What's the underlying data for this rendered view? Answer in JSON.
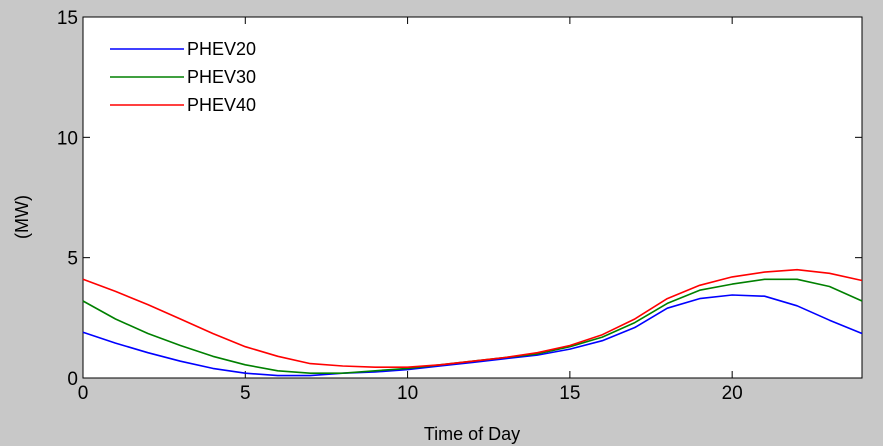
{
  "chart_data": {
    "type": "line",
    "title": "",
    "xlabel": "Time of Day",
    "ylabel": "(MW)",
    "xlim": [
      0,
      24
    ],
    "ylim": [
      0,
      15
    ],
    "xticks": [
      0,
      5,
      10,
      15,
      20
    ],
    "yticks": [
      0,
      5,
      10,
      15
    ],
    "grid": false,
    "legend_position": "top-left",
    "x": [
      0,
      1,
      2,
      3,
      4,
      5,
      6,
      7,
      8,
      9,
      10,
      11,
      12,
      13,
      14,
      15,
      16,
      17,
      18,
      19,
      20,
      21,
      22,
      23,
      24
    ],
    "series": [
      {
        "name": "PHEV20",
        "color": "#0000ff",
        "values": [
          1.9,
          1.45,
          1.05,
          0.7,
          0.4,
          0.2,
          0.1,
          0.1,
          0.2,
          0.25,
          0.35,
          0.5,
          0.65,
          0.8,
          0.95,
          1.2,
          1.55,
          2.1,
          2.9,
          3.3,
          3.45,
          3.4,
          3.0,
          2.4,
          1.85
        ]
      },
      {
        "name": "PHEV30",
        "color": "#008000",
        "values": [
          3.2,
          2.45,
          1.85,
          1.35,
          0.9,
          0.55,
          0.3,
          0.2,
          0.2,
          0.3,
          0.4,
          0.55,
          0.7,
          0.85,
          1.0,
          1.3,
          1.7,
          2.3,
          3.1,
          3.65,
          3.9,
          4.1,
          4.1,
          3.8,
          3.2
        ]
      },
      {
        "name": "PHEV40",
        "color": "#ff0000",
        "values": [
          4.1,
          3.6,
          3.05,
          2.45,
          1.85,
          1.3,
          0.9,
          0.6,
          0.5,
          0.45,
          0.45,
          0.55,
          0.7,
          0.85,
          1.05,
          1.35,
          1.8,
          2.45,
          3.3,
          3.85,
          4.2,
          4.4,
          4.5,
          4.35,
          4.05
        ]
      }
    ]
  }
}
